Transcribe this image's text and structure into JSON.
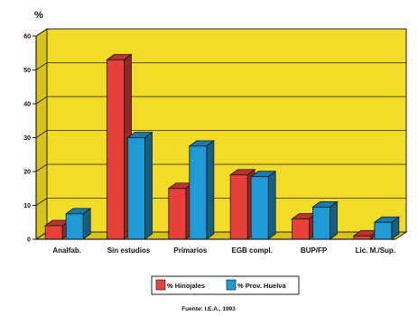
{
  "chart_data": {
    "type": "bar",
    "ylabel": "%",
    "ylim": [
      0,
      60
    ],
    "yticks": [
      "0",
      "10",
      "20",
      "30",
      "40",
      "50",
      "60"
    ],
    "grid": true,
    "categories": [
      "Analfab.",
      "Sin estudios",
      "Primarios",
      "EGB compl.",
      "BUP/FP",
      "Lic. M./Sup."
    ],
    "series": [
      {
        "name": "% Hinojales",
        "color": "#e8403a",
        "values": [
          4,
          53,
          15,
          19,
          6,
          1
        ]
      },
      {
        "name": "% Prov. Huelva",
        "color": "#1e9ad6",
        "values": [
          7.5,
          30,
          27.5,
          18.5,
          9.5,
          5
        ]
      }
    ],
    "legend_position": "bottom",
    "source": "Fuente: I.E.A., 1993",
    "wall_color": "#f2dc28"
  }
}
